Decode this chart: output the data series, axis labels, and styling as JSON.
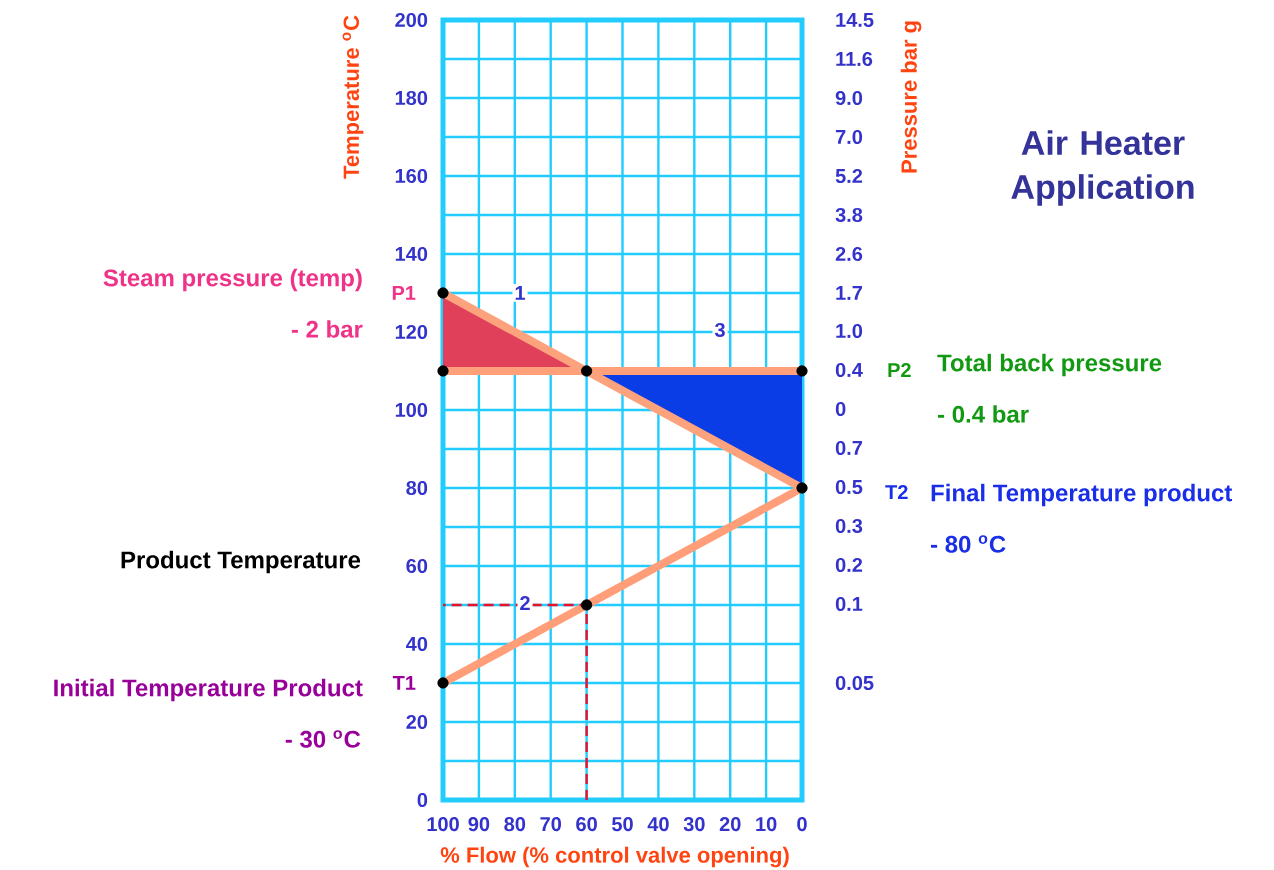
{
  "chart_data": {
    "type": "line",
    "title": "Air Heater Application",
    "xlabel": "% Flow (% control valve opening)",
    "ylabel": "Temperature $^{o}$C",
    "y2label": "Pressure bar g",
    "xlim": [
      100,
      0
    ],
    "xticks": [
      100,
      90,
      80,
      70,
      60,
      50,
      40,
      30,
      20,
      10,
      0
    ],
    "ylim": [
      0,
      200
    ],
    "yticks": [
      0,
      {
        "value": 10,
        "label": null
      },
      20,
      {
        "value": 30,
        "label": null
      },
      40,
      {
        "value": 50,
        "label": null
      },
      60,
      {
        "value": 70,
        "label": null
      },
      80,
      {
        "value": 90,
        "label": null
      },
      100,
      {
        "value": 110,
        "label": null
      },
      120,
      {
        "value": 130,
        "label": null
      },
      140,
      {
        "value": 150,
        "label": null
      },
      160,
      {
        "value": 170,
        "label": null
      },
      180,
      {
        "value": 190,
        "label": null
      },
      200
    ],
    "grid": true,
    "series": [
      {
        "type": "area",
        "color": "#e0405a",
        "x": [
          100,
          60,
          100
        ],
        "values": [
          130,
          110,
          110
        ]
      },
      {
        "type": "area",
        "color": "#0a3de6",
        "x": [
          60,
          0,
          0
        ],
        "values": [
          110,
          110,
          80
        ]
      },
      {
        "color": "#ffa07a",
        "x": [
          100,
          0
        ],
        "values": [
          110,
          110
        ],
        "line_style": "solid"
      },
      {
        "color": "#fca27c",
        "x": [
          100,
          60,
          0
        ],
        "values": [
          130,
          110,
          80
        ],
        "line_style": "solid"
      },
      {
        "color": "#ff9e78",
        "x": [
          100,
          0
        ],
        "values": [
          30,
          80
        ],
        "line_style": "solid"
      },
      {
        "color": "#e8102a",
        "x": [
          60,
          60,
          100
        ],
        "values": [
          0,
          50,
          50
        ],
        "line_style": "dashed"
      },
      {
        "type": "scatter",
        "color": "#000000",
        "marker": "circle",
        "x": [
          100,
          100,
          60,
          0,
          0,
          60,
          100
        ],
        "values": [
          130,
          110,
          110,
          110,
          80,
          50,
          30
        ]
      }
    ],
    "annotations": [
      {
        "text": "P1",
        "x": 100,
        "y": 130
      },
      {
        "text": "T1",
        "x": 100,
        "y": 30
      },
      "1",
      "2",
      "3",
      "P2",
      "T2",
      "Steam pressure (temp)",
      "- 2 bar",
      "Product Temperature",
      "Initial Temperature Product",
      "-  30 $^{o}$C",
      "Total back pressure",
      "- 0.4 bar",
      "Final Temperature product",
      "- 80 $^{o}$C",
      "14.5",
      "11.6",
      "9.0",
      "7.0",
      "5.2",
      "3.8",
      "2.6",
      "1.7",
      "1.0",
      "0.4",
      "0",
      "0.7",
      "0.5",
      "0.3",
      "0.2",
      "0.1",
      "0.05"
    ]
  }
}
